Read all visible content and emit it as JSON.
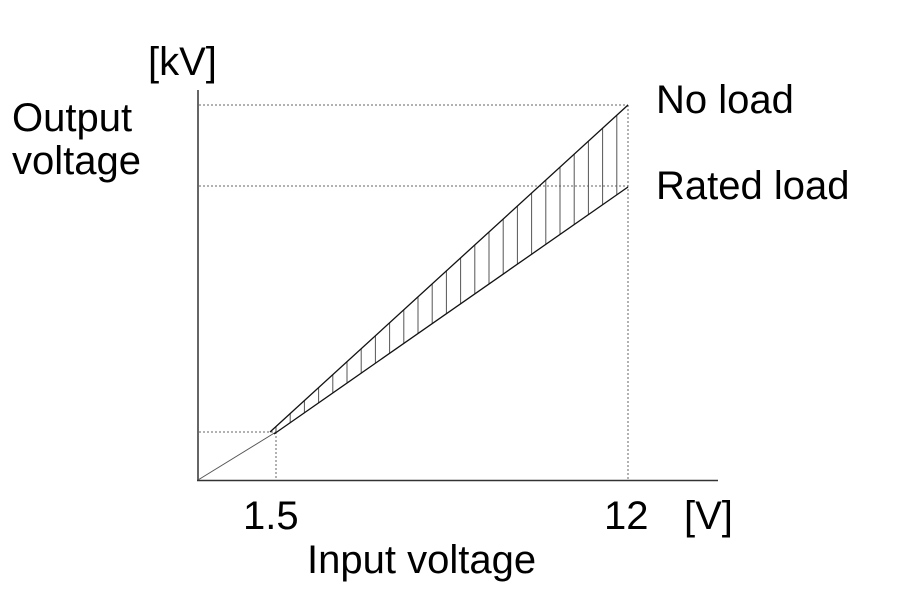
{
  "y_unit": "[kV]",
  "y_label_line1": "Output",
  "y_label_line2": "voltage",
  "x_label": "Input voltage",
  "x_unit": "[V]",
  "x_ticks": [
    "1.5",
    "12"
  ],
  "series": [
    {
      "name": "No load"
    },
    {
      "name": "Rated load"
    }
  ],
  "chart_data": {
    "type": "line",
    "xlabel": "Input voltage",
    "ylabel": "Output voltage",
    "x_unit": "V",
    "y_unit": "kV",
    "x_ticks": [
      1.5,
      12
    ],
    "series": [
      {
        "name": "No load",
        "x": [
          1.5,
          12
        ]
      },
      {
        "name": "Rated load",
        "x": [
          1.5,
          12
        ]
      }
    ],
    "region_between_series": "vertical hatching",
    "grid": false,
    "guide_lines": "dotted"
  }
}
